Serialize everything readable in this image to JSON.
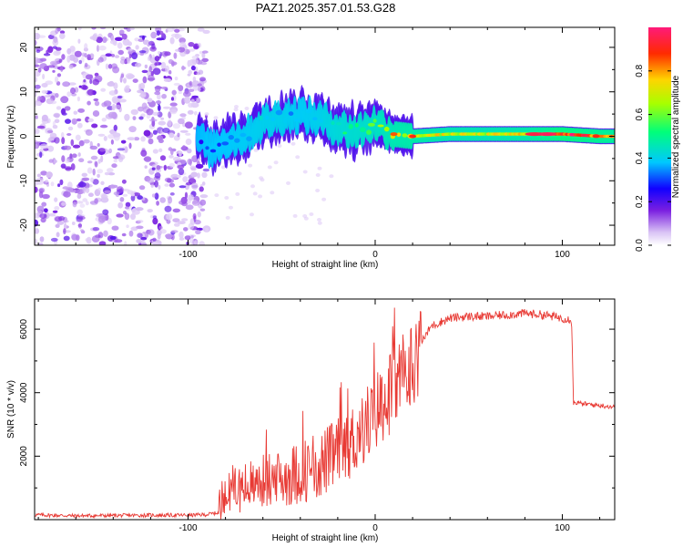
{
  "title": "PAZ1.2025.357.01.53.G28",
  "chart_data": [
    {
      "type": "heatmap",
      "title": "PAZ1.2025.357.01.53.G28",
      "xlabel": "Height of straight line (km)",
      "ylabel": "Frequency (Hz)",
      "xlim": [
        -182,
        128
      ],
      "ylim": [
        -24.5,
        24.5
      ],
      "xticks": [
        -100,
        0,
        100
      ],
      "xtick_labels": [
        "-100",
        "0",
        "100"
      ],
      "yticks": [
        -20,
        -10,
        0,
        10,
        20
      ],
      "ytick_labels": [
        "-20",
        "-10",
        "0",
        "10",
        "20"
      ],
      "colorbar": {
        "label": "Normalized spectral amplitude",
        "range": [
          0,
          1
        ],
        "ticks": [
          0.0,
          0.2,
          0.4,
          0.6,
          0.8
        ],
        "tick_labels": [
          "0.0",
          "0.2",
          "0.4",
          "0.6",
          "0.8"
        ]
      },
      "ridge": {
        "x": [
          -95,
          -88,
          -80,
          -70,
          -60,
          -50,
          -40,
          -30,
          -20,
          -10,
          0,
          10,
          20,
          40,
          60,
          80,
          100,
          120,
          128
        ],
        "frequency": [
          0,
          -3,
          -1,
          0,
          3,
          4.5,
          5,
          4,
          2,
          1,
          3,
          0.5,
          0,
          0.5,
          0.5,
          0.5,
          0.5,
          0,
          0
        ],
        "amplitude": [
          0.25,
          0.3,
          0.3,
          0.35,
          0.4,
          0.4,
          0.35,
          0.4,
          0.5,
          0.55,
          0.6,
          0.7,
          0.75,
          0.7,
          0.7,
          0.75,
          0.95,
          0.85,
          0.8
        ]
      },
      "noise_region_x": [
        -182,
        -90
      ],
      "noise_amplitude": 0.1
    },
    {
      "type": "line",
      "xlabel": "Height of straight line (km)",
      "ylabel": "SNR (10 * v/v)",
      "xlim": [
        -182,
        128
      ],
      "ylim": [
        0,
        6950
      ],
      "xticks": [
        -100,
        0,
        100
      ],
      "xtick_labels": [
        "-100",
        "0",
        "100"
      ],
      "yticks": [
        2000,
        4000,
        6000
      ],
      "ytick_labels": [
        "2000",
        "4000",
        "6000"
      ],
      "color": "#e83a34",
      "series": [
        {
          "name": "SNR",
          "x": [
            -182,
            -160,
            -140,
            -120,
            -100,
            -90,
            -84,
            -80,
            -75,
            -70,
            -60,
            -50,
            -40,
            -30,
            -20,
            -10,
            0,
            10,
            18,
            25,
            30,
            40,
            50,
            60,
            70,
            80,
            90,
            100,
            105,
            106,
            107,
            110,
            120,
            128
          ],
          "values": [
            150,
            120,
            130,
            140,
            140,
            160,
            220,
            900,
            1000,
            1000,
            1200,
            1300,
            1500,
            1700,
            2100,
            2600,
            3400,
            4200,
            4700,
            5600,
            6100,
            6350,
            6400,
            6400,
            6450,
            6500,
            6450,
            6350,
            6300,
            3650,
            3700,
            3650,
            3600,
            3550
          ]
        }
      ]
    }
  ]
}
